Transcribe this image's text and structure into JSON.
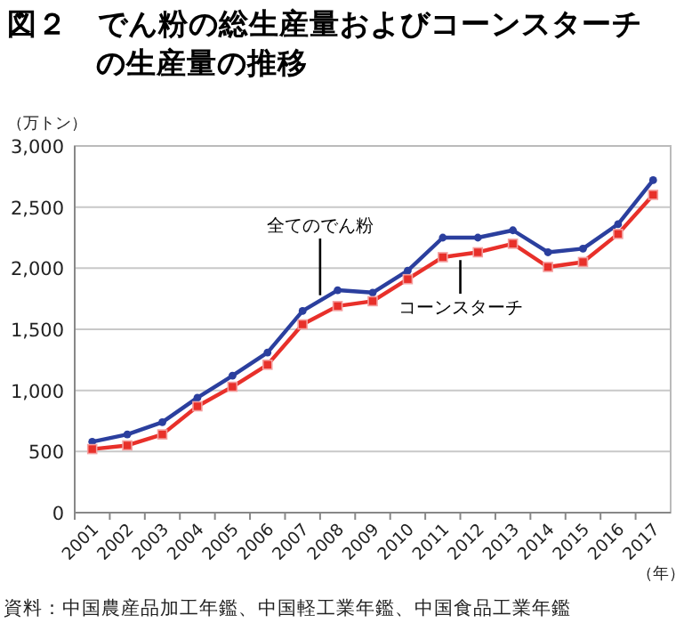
{
  "chart_data": {
    "type": "line",
    "title": "図２　でん粉の総生産量およびコーンスターチの生産量の推移",
    "ylabel": "（万トン）",
    "xlabel": "（年）",
    "categories": [
      "2001",
      "2002",
      "2003",
      "2004",
      "2005",
      "2006",
      "2007",
      "2008",
      "2009",
      "2010",
      "2011",
      "2012",
      "2013",
      "2014",
      "2015",
      "2016",
      "2017"
    ],
    "series": [
      {
        "name": "全てのでん粉",
        "color": "#2b3f9e",
        "marker": "circle",
        "values": [
          580,
          640,
          740,
          940,
          1120,
          1310,
          1650,
          1820,
          1800,
          1980,
          2250,
          2250,
          2310,
          2130,
          2160,
          2360,
          2720
        ]
      },
      {
        "name": "コーンスターチ",
        "color": "#e8302a",
        "marker": "square",
        "values": [
          520,
          550,
          640,
          870,
          1030,
          1210,
          1540,
          1690,
          1730,
          1910,
          2090,
          2130,
          2200,
          2010,
          2050,
          2280,
          2600
        ]
      }
    ],
    "ylim": [
      0,
      3000
    ],
    "yticks": [
      {
        "value": 0,
        "label": "0"
      },
      {
        "value": 500,
        "label": "500"
      },
      {
        "value": 1000,
        "label": "1,000"
      },
      {
        "value": 1500,
        "label": "1,500"
      },
      {
        "value": 2000,
        "label": "2,000"
      },
      {
        "value": 2500,
        "label": "2,500"
      },
      {
        "value": 3000,
        "label": "3,000"
      }
    ],
    "grid": "y",
    "legend": false,
    "annotations": [
      "資料：中国農産品加工年鑑、中国軽工業年鑑、中国食品工業年鑑"
    ]
  }
}
